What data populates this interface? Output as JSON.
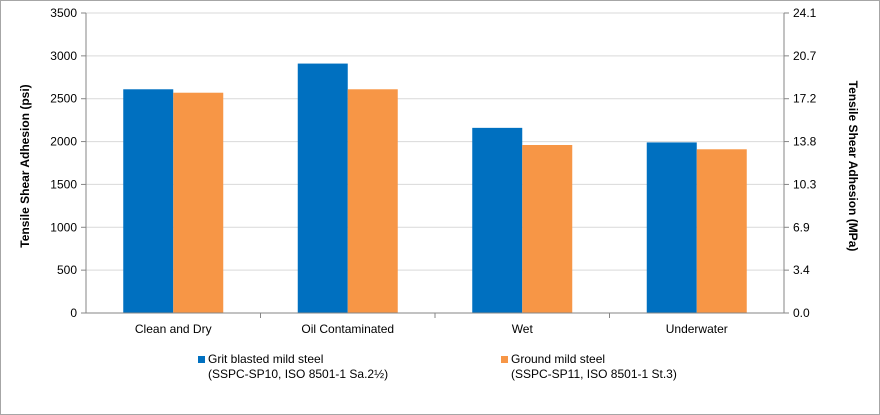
{
  "chart_data": {
    "type": "bar",
    "categories": [
      "Clean and Dry",
      "Oil Contaminated",
      "Wet",
      "Underwater"
    ],
    "series": [
      {
        "name": "Grit blasted mild steel",
        "name_line2": "(SSPC-SP10, ISO 8501-1 Sa.2½)",
        "color": "#0070c0",
        "values": [
          2610,
          2910,
          2160,
          1990
        ]
      },
      {
        "name": "Ground mild steel",
        "name_line2": "(SSPC-SP11, ISO 8501-1 St.3)",
        "color": "#f79646",
        "values": [
          2570,
          2610,
          1960,
          1910
        ]
      }
    ],
    "ylabel": "Tensile Shear Adhesion (psi)",
    "ylabel_right": "Tensile Shear Adhesion (MPa)",
    "ylim": [
      0,
      3500
    ],
    "ylim_right": [
      0,
      24.1
    ],
    "yticks": [
      "0",
      "500",
      "1000",
      "1500",
      "2000",
      "2500",
      "3000",
      "3500"
    ],
    "yticks_right": [
      "0.0",
      "3.4",
      "6.9",
      "10.3",
      "13.8",
      "17.2",
      "20.7",
      "24.1"
    ],
    "grid": true,
    "legend": "bottom"
  }
}
